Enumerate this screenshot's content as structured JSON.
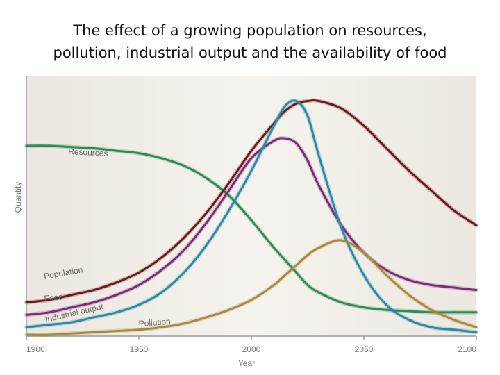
{
  "slide": {
    "title_line1": "The effect of a growing population on resources,",
    "title_line2": "pollution, industrial output and the availability of food"
  },
  "chart_data": {
    "type": "line",
    "title": "The effect of a growing population on resources, pollution, industrial output and the availability of food",
    "xlabel": "Year",
    "ylabel": "Quantity",
    "xlim": [
      1900,
      2100
    ],
    "ylim": [
      0,
      100
    ],
    "xticks": [
      "1900",
      "1950",
      "2000",
      "2050",
      "2100"
    ],
    "x": [
      1900,
      1910,
      1920,
      1930,
      1940,
      1950,
      1960,
      1970,
      1980,
      1990,
      2000,
      2010,
      2015,
      2020,
      2025,
      2030,
      2040,
      2050,
      2060,
      2070,
      2080,
      2090,
      2100
    ],
    "series": [
      {
        "name": "Resources",
        "color": "#2e8b57",
        "values": [
          76,
          76,
          75.5,
          75,
          74,
          73,
          71,
          68,
          63,
          56,
          46,
          35,
          30,
          25,
          20,
          17,
          13,
          11,
          10,
          9.5,
          9,
          9,
          9
        ]
      },
      {
        "name": "Population",
        "color": "#6e1a1a",
        "values": [
          13,
          14,
          16,
          18,
          21,
          25,
          31,
          39,
          49,
          61,
          74,
          85,
          90,
          93,
          94,
          94,
          91,
          84,
          75,
          66,
          58,
          50,
          44
        ]
      },
      {
        "name": "Food",
        "color": "#7a2c7a",
        "values": [
          8,
          9,
          11,
          13,
          16,
          20,
          26,
          34,
          45,
          58,
          71,
          78,
          79,
          77,
          70,
          60,
          44,
          33,
          26,
          22,
          20,
          19,
          18
        ]
      },
      {
        "name": "Industrial output",
        "color": "#2a8aa8",
        "values": [
          3,
          4,
          5,
          7,
          9,
          12,
          17,
          25,
          36,
          50,
          66,
          84,
          92,
          94,
          88,
          72,
          43,
          24,
          12,
          6,
          3,
          2,
          1
        ]
      },
      {
        "name": "Pollution",
        "color": "#a88a3a",
        "values": [
          0,
          0,
          0.5,
          1,
          1.5,
          2,
          3,
          4.5,
          7,
          10,
          14,
          20,
          24,
          28,
          32,
          35,
          38,
          33,
          24,
          16,
          10,
          6,
          3
        ]
      }
    ],
    "labels": {
      "resources": "Resources",
      "population": "Population",
      "food": "Food",
      "industrial": "Industrial output",
      "pollution": "Pollution"
    },
    "grid": false,
    "legend": "inline"
  }
}
